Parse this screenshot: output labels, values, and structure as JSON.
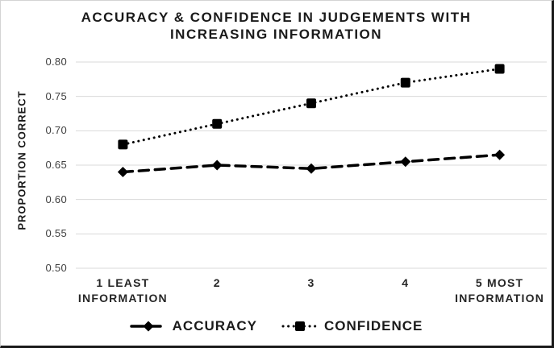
{
  "chart_data": {
    "type": "line",
    "title": "ACCURACY & CONFIDENCE IN JUDGEMENTS WITH INCREASING INFORMATION",
    "ylabel": "PROPORTION CORRECT",
    "xlabel": "",
    "categories": [
      "1 LEAST\nINFORMATION",
      "2",
      "3",
      "4",
      "5 MOST\nINFORMATION"
    ],
    "series": [
      {
        "name": "ACCURACY",
        "values": [
          0.64,
          0.65,
          0.645,
          0.655,
          0.665
        ],
        "line_style": "dashed",
        "marker": "diamond",
        "color": "#000000"
      },
      {
        "name": "CONFIDENCE",
        "values": [
          0.68,
          0.71,
          0.74,
          0.77,
          0.79
        ],
        "line_style": "dotted",
        "marker": "square",
        "color": "#000000"
      }
    ],
    "ylim": [
      0.5,
      0.8
    ],
    "ytick_step": 0.05,
    "ytick_labels": [
      "0.50",
      "0.55",
      "0.60",
      "0.65",
      "0.70",
      "0.75",
      "0.80"
    ],
    "grid": "horizontal",
    "gridline_color": "#d9d9d9",
    "legend_position": "bottom",
    "tick_text_color": "#404040",
    "axis_text_color": "#262626",
    "title_text_color": "#1a1a1a"
  }
}
